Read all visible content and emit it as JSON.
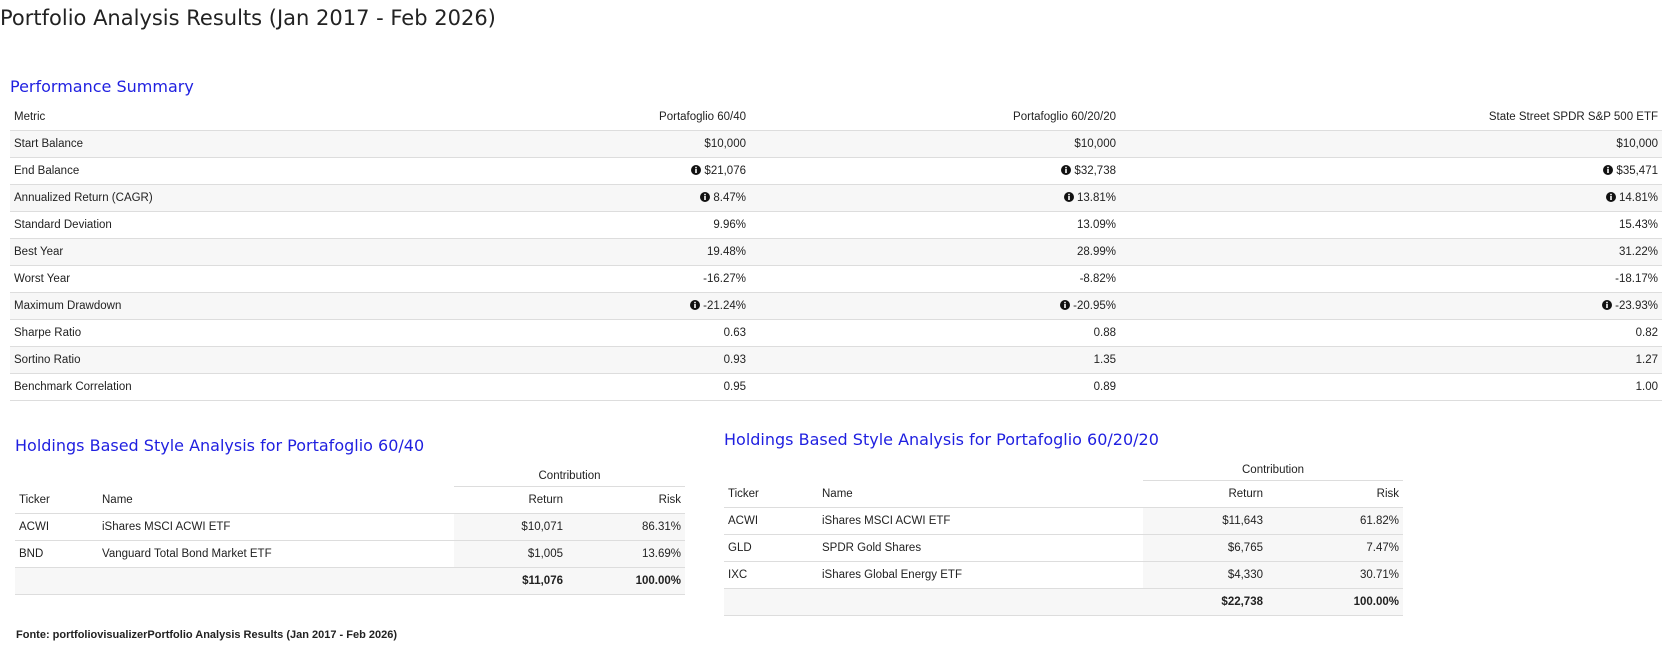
{
  "title": "Portfolio Analysis Results (Jan 2017 - Feb 2026)",
  "performance_summary": {
    "title": "Performance Summary",
    "columns": [
      "Metric",
      "Portafoglio 60/40",
      "Portafoglio 60/20/20",
      "State Street SPDR S&P 500 ETF"
    ],
    "rows": [
      [
        "Start Balance",
        "$10,000",
        "$10,000",
        "$10,000"
      ],
      [
        "End Balance",
        "$21,076",
        "$32,738",
        "$35,471"
      ],
      [
        "Annualized Return (CAGR)",
        "8.47%",
        "13.81%",
        "14.81%"
      ],
      [
        "Standard Deviation",
        "9.96%",
        "13.09%",
        "15.43%"
      ],
      [
        "Best Year",
        "19.48%",
        "28.99%",
        "31.22%"
      ],
      [
        "Worst Year",
        "-16.27%",
        "-8.82%",
        "-18.17%"
      ],
      [
        "Maximum Drawdown",
        "-21.24%",
        "-20.95%",
        "-23.93%"
      ],
      [
        "Sharpe Ratio",
        "0.63",
        "0.88",
        "0.82"
      ],
      [
        "Sortino Ratio",
        "0.93",
        "1.35",
        "1.27"
      ],
      [
        "Benchmark Correlation",
        "0.95",
        "0.89",
        "1.00"
      ]
    ]
  },
  "holdings": [
    {
      "title": "Holdings Based Style Analysis for Portafoglio 60/40",
      "group_header": "Contribution",
      "columns": [
        "Ticker",
        "Name",
        "Return",
        "Risk"
      ],
      "rows": [
        [
          "ACWI",
          "iShares MSCI ACWI ETF",
          "$10,071",
          "86.31%"
        ],
        [
          "BND",
          "Vanguard Total Bond Market ETF",
          "$1,005",
          "13.69%"
        ]
      ],
      "total": {
        "return": "$11,076",
        "risk": "100.00%"
      }
    },
    {
      "title": "Holdings Based Style Analysis for Portafoglio 60/20/20",
      "group_header": "Contribution",
      "columns": [
        "Ticker",
        "Name",
        "Return",
        "Risk"
      ],
      "rows": [
        [
          "ACWI",
          "iShares MSCI ACWI ETF",
          "$11,643",
          "61.82%"
        ],
        [
          "GLD",
          "SPDR Gold Shares",
          "$6,765",
          "7.47%"
        ],
        [
          "IXC",
          "iShares Global Energy ETF",
          "$4,330",
          "30.71%"
        ]
      ],
      "total": {
        "return": "$22,738",
        "risk": "100.00%"
      }
    }
  ],
  "footnote": "Fonte: portfoliovisualizerPortfolio Analysis Results (Jan 2017 - Feb 2026)"
}
